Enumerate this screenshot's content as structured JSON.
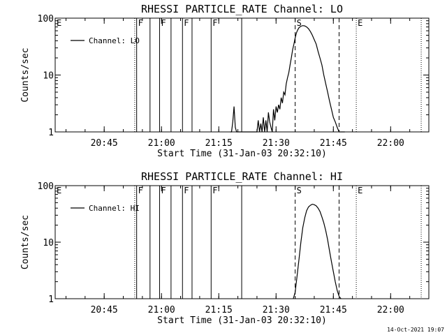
{
  "timestamp": "14-Oct-2021 19:07",
  "chart_data": [
    {
      "type": "line",
      "title": "RHESSI PARTICLE_RATE Channel: LO",
      "xlabel": "Start Time (31-Jan-03 20:32:10)",
      "ylabel": "Counts/sec",
      "y_scale": "log",
      "ylim": [
        1,
        100
      ],
      "xlim": [
        "20:32:10",
        "22:10:00"
      ],
      "grid": false,
      "legend": "top-left",
      "x_ticks": [
        "20:45",
        "21:00",
        "21:15",
        "21:30",
        "21:45",
        "22:00"
      ],
      "y_ticks": [
        "1",
        "10",
        "100"
      ],
      "series": [
        {
          "name": "Channel: LO",
          "x": [
            "21:18:00",
            "21:18:20",
            "21:18:40",
            "21:19:00",
            "21:19:20",
            "21:19:40",
            "21:20:00",
            "21:20:20",
            "21:20:40",
            "21:21:00",
            "21:21:20",
            "21:21:40",
            "21:22:00",
            "21:22:20",
            "21:22:40",
            "21:23:00",
            "21:23:20",
            "21:23:40",
            "21:24:00",
            "21:24:20",
            "21:24:40",
            "21:25:00",
            "21:25:20",
            "21:25:40",
            "21:26:00",
            "21:26:20",
            "21:26:40",
            "21:27:00",
            "21:27:20",
            "21:27:40",
            "21:28:00",
            "21:28:20",
            "21:28:40",
            "21:29:00",
            "21:29:20",
            "21:29:40",
            "21:30:00",
            "21:30:20",
            "21:30:40",
            "21:31:00",
            "21:31:20",
            "21:31:40",
            "21:32:00",
            "21:32:20",
            "21:32:40",
            "21:33:00",
            "21:33:20",
            "21:33:40",
            "21:34:00",
            "21:34:20",
            "21:34:40",
            "21:35:00",
            "21:35:20",
            "21:35:40",
            "21:36:00",
            "21:36:30",
            "21:37:00",
            "21:37:30",
            "21:38:00",
            "21:38:30",
            "21:39:00",
            "21:39:30",
            "21:40:00",
            "21:40:30",
            "21:41:00",
            "21:41:30",
            "21:42:00",
            "21:42:30",
            "21:43:00",
            "21:43:30",
            "21:44:00",
            "21:44:30",
            "21:45:00",
            "21:45:30",
            "21:46:00",
            "21:46:30",
            "21:47:00",
            "21:47:20",
            "21:47:40",
            "21:48:00"
          ],
          "y": [
            1,
            1,
            1.5,
            2.8,
            1.2,
            1,
            1,
            1,
            1,
            1,
            1,
            1,
            1,
            1,
            1,
            1,
            1,
            1,
            1,
            1,
            1,
            1,
            1.6,
            1,
            1.4,
            1,
            1.8,
            1,
            1.6,
            1,
            2.2,
            1.5,
            1.2,
            1,
            2.5,
            1.6,
            2.8,
            2.2,
            3,
            2.5,
            4,
            3.2,
            5,
            4.5,
            7,
            9,
            11,
            15,
            20,
            28,
            35,
            45,
            55,
            62,
            68,
            72,
            74,
            73,
            70,
            65,
            58,
            50,
            42,
            35,
            26,
            20,
            15,
            10,
            7,
            5,
            3.5,
            2.5,
            1.8,
            1.5,
            1.2,
            1,
            1,
            1,
            1,
            1
          ]
        }
      ],
      "annotations": [
        {
          "label": "E",
          "x": "20:32:10",
          "style": "dotted"
        },
        {
          "label": "",
          "x": "20:53:00",
          "style": "dotted"
        },
        {
          "label": "F",
          "x": "20:53:30",
          "style": "solid"
        },
        {
          "label": "",
          "x": "20:57:00",
          "style": "solid"
        },
        {
          "label": "F",
          "x": "20:59:30",
          "style": "solid"
        },
        {
          "label": "",
          "x": "21:02:30",
          "style": "solid"
        },
        {
          "label": "F",
          "x": "21:05:30",
          "style": "solid"
        },
        {
          "label": "",
          "x": "21:08:00",
          "style": "solid"
        },
        {
          "label": "F",
          "x": "21:13:00",
          "style": "solid"
        },
        {
          "label": "",
          "x": "21:21:00",
          "style": "solid"
        },
        {
          "label": "S",
          "x": "21:35:00",
          "style": "dashed"
        },
        {
          "label": "",
          "x": "21:46:30",
          "style": "dashed"
        },
        {
          "label": "E",
          "x": "21:51:00",
          "style": "dotted"
        },
        {
          "label": "",
          "x": "22:08:00",
          "style": "dotted"
        }
      ]
    },
    {
      "type": "line",
      "title": "RHESSI PARTICLE_RATE Channel: HI",
      "xlabel": "Start Time (31-Jan-03 20:32:10)",
      "ylabel": "Counts/sec",
      "y_scale": "log",
      "ylim": [
        1,
        100
      ],
      "xlim": [
        "20:32:10",
        "22:10:00"
      ],
      "grid": false,
      "legend": "top-left",
      "x_ticks": [
        "20:45",
        "21:00",
        "21:15",
        "21:30",
        "21:45",
        "22:00"
      ],
      "y_ticks": [
        "1",
        "10",
        "100"
      ],
      "series": [
        {
          "name": "Channel: HI",
          "x": [
            "21:34:30",
            "21:35:00",
            "21:35:30",
            "21:36:00",
            "21:36:30",
            "21:37:00",
            "21:37:30",
            "21:38:00",
            "21:38:30",
            "21:39:00",
            "21:39:30",
            "21:40:00",
            "21:40:30",
            "21:41:00",
            "21:41:30",
            "21:42:00",
            "21:42:30",
            "21:43:00",
            "21:43:30",
            "21:44:00",
            "21:44:30",
            "21:45:00",
            "21:45:30",
            "21:46:00",
            "21:46:30",
            "21:47:00"
          ],
          "y": [
            1,
            1.3,
            2.5,
            5,
            10,
            18,
            27,
            36,
            42,
            45,
            47,
            46,
            44,
            40,
            35,
            28,
            22,
            16,
            11,
            7,
            4.5,
            3,
            2,
            1.4,
            1.1,
            1
          ]
        }
      ],
      "annotations": [
        {
          "label": "E",
          "x": "20:32:10",
          "style": "dotted"
        },
        {
          "label": "",
          "x": "20:53:00",
          "style": "dotted"
        },
        {
          "label": "F",
          "x": "20:53:30",
          "style": "solid"
        },
        {
          "label": "",
          "x": "20:57:00",
          "style": "solid"
        },
        {
          "label": "F",
          "x": "20:59:30",
          "style": "solid"
        },
        {
          "label": "",
          "x": "21:02:30",
          "style": "solid"
        },
        {
          "label": "F",
          "x": "21:05:30",
          "style": "solid"
        },
        {
          "label": "",
          "x": "21:08:00",
          "style": "solid"
        },
        {
          "label": "F",
          "x": "21:13:00",
          "style": "solid"
        },
        {
          "label": "",
          "x": "21:21:00",
          "style": "solid"
        },
        {
          "label": "S",
          "x": "21:35:00",
          "style": "dashed"
        },
        {
          "label": "",
          "x": "21:46:30",
          "style": "dashed"
        },
        {
          "label": "E",
          "x": "21:51:00",
          "style": "dotted"
        },
        {
          "label": "",
          "x": "22:08:00",
          "style": "dotted"
        }
      ]
    }
  ]
}
